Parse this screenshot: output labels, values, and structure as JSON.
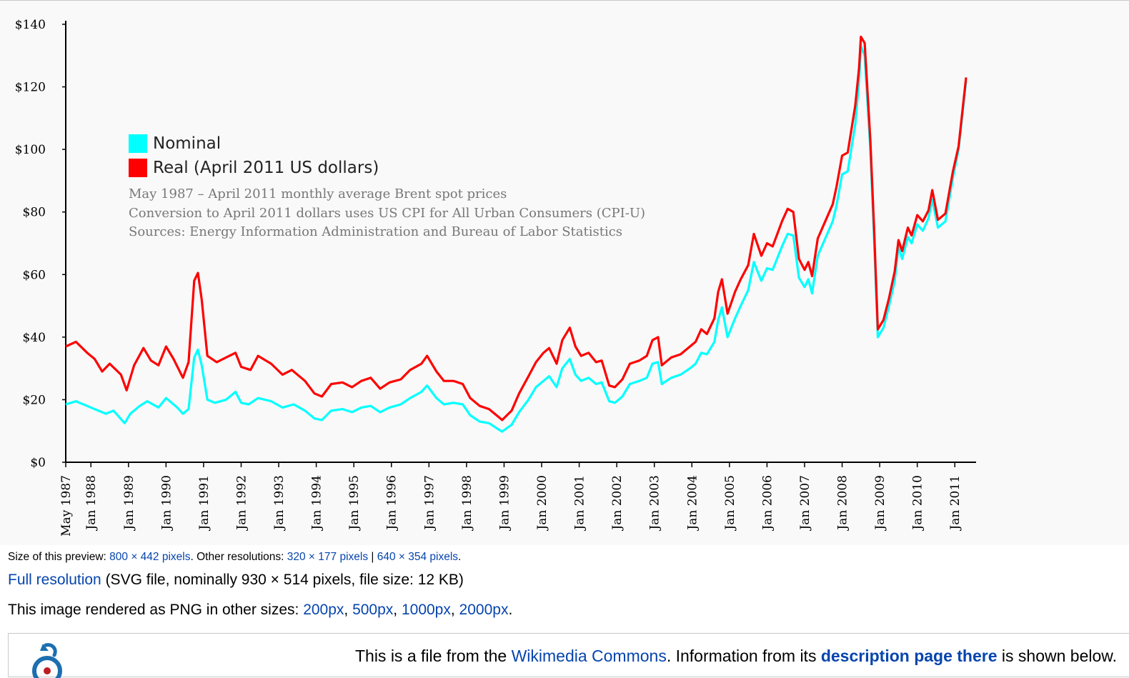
{
  "chart_data": {
    "type": "line",
    "legend": {
      "nominal": "Nominal",
      "real": "Real (April 2011 US dollars)"
    },
    "legend_placement": "upper-left",
    "notes": [
      "May 1987 – April 2011 monthly average Brent spot prices",
      "Conversion to April 2011 dollars uses US CPI for All Urban Consumers (CPI-U)",
      "Sources: Energy Information Administration and Bureau of Labor Statistics"
    ],
    "y_ticks": [
      "$0",
      "$20",
      "$40",
      "$60",
      "$80",
      "$100",
      "$120",
      "$140"
    ],
    "ylim": [
      0,
      140
    ],
    "x_ticks": [
      "May 1987",
      "Jan 1988",
      "Jan 1989",
      "Jan 1990",
      "Jan 1991",
      "Jan 1992",
      "Jan 1993",
      "Jan 1994",
      "Jan 1995",
      "Jan 1996",
      "Jan 1997",
      "Jan 1998",
      "Jan 1999",
      "Jan 2000",
      "Jan 2001",
      "Jan 2002",
      "Jan 2003",
      "Jan 2004",
      "Jan 2005",
      "Jan 2006",
      "Jan 2007",
      "Jan 2008",
      "Jan 2009",
      "Jan 2010",
      "Jan 2011"
    ],
    "xlim": [
      1987.33,
      2011.3
    ],
    "grid": false,
    "series": [
      {
        "name": "Nominal",
        "color": "#00ffff",
        "points": [
          [
            1987.33,
            18.5
          ],
          [
            1987.6,
            19.5
          ],
          [
            1987.9,
            18.0
          ],
          [
            1988.1,
            17.0
          ],
          [
            1988.4,
            15.5
          ],
          [
            1988.6,
            16.5
          ],
          [
            1988.9,
            12.5
          ],
          [
            1989.05,
            15.5
          ],
          [
            1989.3,
            18.0
          ],
          [
            1989.5,
            19.5
          ],
          [
            1989.8,
            17.5
          ],
          [
            1990.0,
            20.5
          ],
          [
            1990.3,
            17.5
          ],
          [
            1990.45,
            15.5
          ],
          [
            1990.6,
            17.0
          ],
          [
            1990.75,
            33.5
          ],
          [
            1990.85,
            36.0
          ],
          [
            1990.95,
            31.0
          ],
          [
            1991.1,
            20.0
          ],
          [
            1991.3,
            19.0
          ],
          [
            1991.6,
            20.0
          ],
          [
            1991.85,
            22.5
          ],
          [
            1992.0,
            19.0
          ],
          [
            1992.2,
            18.5
          ],
          [
            1992.45,
            20.5
          ],
          [
            1992.8,
            19.5
          ],
          [
            1993.1,
            17.5
          ],
          [
            1993.4,
            18.5
          ],
          [
            1993.7,
            16.5
          ],
          [
            1993.95,
            14.0
          ],
          [
            1994.15,
            13.5
          ],
          [
            1994.4,
            16.5
          ],
          [
            1994.7,
            17.0
          ],
          [
            1994.95,
            16.0
          ],
          [
            1995.2,
            17.5
          ],
          [
            1995.45,
            18.0
          ],
          [
            1995.7,
            16.0
          ],
          [
            1995.95,
            17.5
          ],
          [
            1996.25,
            18.5
          ],
          [
            1996.5,
            20.5
          ],
          [
            1996.8,
            22.5
          ],
          [
            1996.95,
            24.5
          ],
          [
            1997.2,
            20.5
          ],
          [
            1997.4,
            18.5
          ],
          [
            1997.65,
            19.0
          ],
          [
            1997.9,
            18.5
          ],
          [
            1998.1,
            15.0
          ],
          [
            1998.35,
            13.0
          ],
          [
            1998.6,
            12.5
          ],
          [
            1998.85,
            10.5
          ],
          [
            1998.95,
            9.8
          ],
          [
            1999.2,
            12.0
          ],
          [
            1999.4,
            16.0
          ],
          [
            1999.65,
            20.0
          ],
          [
            1999.85,
            24.0
          ],
          [
            2000.05,
            26.0
          ],
          [
            2000.2,
            27.5
          ],
          [
            2000.4,
            24.0
          ],
          [
            2000.55,
            30.0
          ],
          [
            2000.75,
            33.0
          ],
          [
            2000.9,
            28.0
          ],
          [
            2001.05,
            26.0
          ],
          [
            2001.25,
            27.0
          ],
          [
            2001.45,
            25.0
          ],
          [
            2001.6,
            25.5
          ],
          [
            2001.8,
            19.5
          ],
          [
            2001.95,
            19.0
          ],
          [
            2002.15,
            21.0
          ],
          [
            2002.35,
            25.0
          ],
          [
            2002.6,
            26.0
          ],
          [
            2002.8,
            27.0
          ],
          [
            2002.95,
            31.5
          ],
          [
            2003.1,
            32.0
          ],
          [
            2003.2,
            25.0
          ],
          [
            2003.45,
            27.0
          ],
          [
            2003.7,
            28.0
          ],
          [
            2003.95,
            30.0
          ],
          [
            2004.1,
            31.5
          ],
          [
            2004.25,
            35.0
          ],
          [
            2004.4,
            34.5
          ],
          [
            2004.6,
            38.5
          ],
          [
            2004.7,
            45.5
          ],
          [
            2004.8,
            49.5
          ],
          [
            2004.95,
            40.0
          ],
          [
            2005.15,
            46.0
          ],
          [
            2005.3,
            50.0
          ],
          [
            2005.5,
            55.0
          ],
          [
            2005.65,
            64.0
          ],
          [
            2005.85,
            58.0
          ],
          [
            2006.0,
            62.0
          ],
          [
            2006.15,
            61.5
          ],
          [
            2006.4,
            69.0
          ],
          [
            2006.55,
            73.0
          ],
          [
            2006.7,
            72.5
          ],
          [
            2006.85,
            59.0
          ],
          [
            2007.0,
            56.0
          ],
          [
            2007.1,
            58.5
          ],
          [
            2007.2,
            54.0
          ],
          [
            2007.35,
            66.0
          ],
          [
            2007.55,
            71.5
          ],
          [
            2007.75,
            77.0
          ],
          [
            2007.85,
            82.0
          ],
          [
            2008.0,
            92.0
          ],
          [
            2008.15,
            93.0
          ],
          [
            2008.35,
            108.0
          ],
          [
            2008.45,
            122.0
          ],
          [
            2008.5,
            133.0
          ],
          [
            2008.6,
            130.0
          ],
          [
            2008.75,
            100.0
          ],
          [
            2008.85,
            72.0
          ],
          [
            2008.95,
            40.0
          ],
          [
            2009.1,
            43.0
          ],
          [
            2009.25,
            50.0
          ],
          [
            2009.4,
            58.0
          ],
          [
            2009.5,
            69.0
          ],
          [
            2009.6,
            65.0
          ],
          [
            2009.75,
            72.0
          ],
          [
            2009.85,
            70.0
          ],
          [
            2010.0,
            76.0
          ],
          [
            2010.15,
            74.0
          ],
          [
            2010.3,
            78.0
          ],
          [
            2010.4,
            84.0
          ],
          [
            2010.55,
            75.0
          ],
          [
            2010.75,
            77.0
          ],
          [
            2010.95,
            91.0
          ],
          [
            2011.1,
            100.0
          ],
          [
            2011.3,
            122.0
          ]
        ]
      },
      {
        "name": "Real (April 2011 US dollars)",
        "color": "#ff0000",
        "points": [
          [
            1987.33,
            37.0
          ],
          [
            1987.6,
            38.5
          ],
          [
            1987.9,
            35.0
          ],
          [
            1988.1,
            33.0
          ],
          [
            1988.3,
            29.0
          ],
          [
            1988.5,
            31.5
          ],
          [
            1988.8,
            28.0
          ],
          [
            1988.95,
            23.0
          ],
          [
            1989.15,
            31.0
          ],
          [
            1989.4,
            36.5
          ],
          [
            1989.6,
            32.5
          ],
          [
            1989.8,
            31.0
          ],
          [
            1990.0,
            37.0
          ],
          [
            1990.2,
            33.0
          ],
          [
            1990.45,
            27.0
          ],
          [
            1990.6,
            32.0
          ],
          [
            1990.75,
            58.0
          ],
          [
            1990.85,
            60.5
          ],
          [
            1990.95,
            52.0
          ],
          [
            1991.1,
            34.0
          ],
          [
            1991.35,
            32.0
          ],
          [
            1991.6,
            33.5
          ],
          [
            1991.85,
            35.0
          ],
          [
            1992.0,
            30.5
          ],
          [
            1992.25,
            29.5
          ],
          [
            1992.45,
            34.0
          ],
          [
            1992.8,
            31.5
          ],
          [
            1993.1,
            28.0
          ],
          [
            1993.35,
            29.5
          ],
          [
            1993.7,
            26.0
          ],
          [
            1993.95,
            22.0
          ],
          [
            1994.15,
            21.0
          ],
          [
            1994.4,
            25.0
          ],
          [
            1994.7,
            25.5
          ],
          [
            1994.95,
            24.0
          ],
          [
            1995.2,
            26.0
          ],
          [
            1995.45,
            27.0
          ],
          [
            1995.7,
            23.5
          ],
          [
            1995.95,
            25.5
          ],
          [
            1996.25,
            26.5
          ],
          [
            1996.5,
            29.5
          ],
          [
            1996.8,
            31.5
          ],
          [
            1996.95,
            34.0
          ],
          [
            1997.2,
            29.0
          ],
          [
            1997.4,
            26.0
          ],
          [
            1997.65,
            26.0
          ],
          [
            1997.9,
            25.0
          ],
          [
            1998.1,
            20.5
          ],
          [
            1998.35,
            18.0
          ],
          [
            1998.6,
            17.0
          ],
          [
            1998.85,
            14.5
          ],
          [
            1998.95,
            13.5
          ],
          [
            1999.2,
            16.5
          ],
          [
            1999.4,
            22.0
          ],
          [
            1999.65,
            27.5
          ],
          [
            1999.85,
            32.0
          ],
          [
            2000.05,
            35.0
          ],
          [
            2000.2,
            36.5
          ],
          [
            2000.4,
            31.5
          ],
          [
            2000.55,
            39.0
          ],
          [
            2000.75,
            43.0
          ],
          [
            2000.9,
            37.0
          ],
          [
            2001.05,
            34.0
          ],
          [
            2001.25,
            35.0
          ],
          [
            2001.45,
            32.0
          ],
          [
            2001.6,
            32.5
          ],
          [
            2001.8,
            24.5
          ],
          [
            2001.95,
            24.0
          ],
          [
            2002.15,
            26.5
          ],
          [
            2002.35,
            31.5
          ],
          [
            2002.6,
            32.5
          ],
          [
            2002.8,
            34.0
          ],
          [
            2002.95,
            39.0
          ],
          [
            2003.1,
            40.0
          ],
          [
            2003.2,
            31.0
          ],
          [
            2003.45,
            33.5
          ],
          [
            2003.7,
            34.5
          ],
          [
            2003.95,
            37.0
          ],
          [
            2004.1,
            38.5
          ],
          [
            2004.25,
            42.5
          ],
          [
            2004.4,
            41.0
          ],
          [
            2004.6,
            46.0
          ],
          [
            2004.7,
            54.5
          ],
          [
            2004.8,
            58.5
          ],
          [
            2004.95,
            47.5
          ],
          [
            2005.15,
            54.5
          ],
          [
            2005.3,
            58.5
          ],
          [
            2005.5,
            63.0
          ],
          [
            2005.65,
            73.0
          ],
          [
            2005.85,
            66.0
          ],
          [
            2006.0,
            70.0
          ],
          [
            2006.15,
            69.0
          ],
          [
            2006.4,
            77.0
          ],
          [
            2006.55,
            81.0
          ],
          [
            2006.7,
            80.0
          ],
          [
            2006.85,
            65.0
          ],
          [
            2007.0,
            61.5
          ],
          [
            2007.1,
            64.0
          ],
          [
            2007.2,
            59.5
          ],
          [
            2007.35,
            71.5
          ],
          [
            2007.55,
            77.0
          ],
          [
            2007.75,
            82.5
          ],
          [
            2007.85,
            88.0
          ],
          [
            2008.0,
            98.0
          ],
          [
            2008.15,
            99.0
          ],
          [
            2008.35,
            114.0
          ],
          [
            2008.45,
            126.0
          ],
          [
            2008.5,
            136.0
          ],
          [
            2008.6,
            134.0
          ],
          [
            2008.75,
            103.0
          ],
          [
            2008.85,
            75.0
          ],
          [
            2008.95,
            42.5
          ],
          [
            2009.1,
            45.5
          ],
          [
            2009.25,
            52.5
          ],
          [
            2009.4,
            61.0
          ],
          [
            2009.5,
            71.0
          ],
          [
            2009.6,
            67.5
          ],
          [
            2009.75,
            75.0
          ],
          [
            2009.85,
            72.5
          ],
          [
            2010.0,
            79.0
          ],
          [
            2010.15,
            77.0
          ],
          [
            2010.3,
            80.5
          ],
          [
            2010.4,
            87.0
          ],
          [
            2010.55,
            77.5
          ],
          [
            2010.75,
            79.5
          ],
          [
            2010.95,
            93.0
          ],
          [
            2011.1,
            101.0
          ],
          [
            2011.3,
            123.0
          ]
        ]
      }
    ]
  },
  "info": {
    "size_prefix": "Size of this preview: ",
    "size_preview_link": "800 × 442 pixels",
    "size_mid": ". Other resolutions: ",
    "res_320": "320 × 177 pixels",
    "res_sep": " | ",
    "res_640": "640 × 354 pixels",
    "size_end": ".",
    "full_link": "Full resolution",
    "full_desc": " (SVG file, nominally 930 × 514 pixels, file size: 12 KB)",
    "png_prefix": "This image rendered as PNG in other sizes: ",
    "png_200": "200px",
    "png_500": "500px",
    "png_1000": "1000px",
    "png_2000": "2000px",
    "comma": ", ",
    "png_end": "."
  },
  "commons": {
    "text_1": "This is a file from the ",
    "link_commons": "Wikimedia Commons",
    "text_2": ". Information from its ",
    "link_description": "description page there",
    "text_3": " is shown below.",
    "logo_icon": "wikimedia-commons-logo-icon"
  }
}
